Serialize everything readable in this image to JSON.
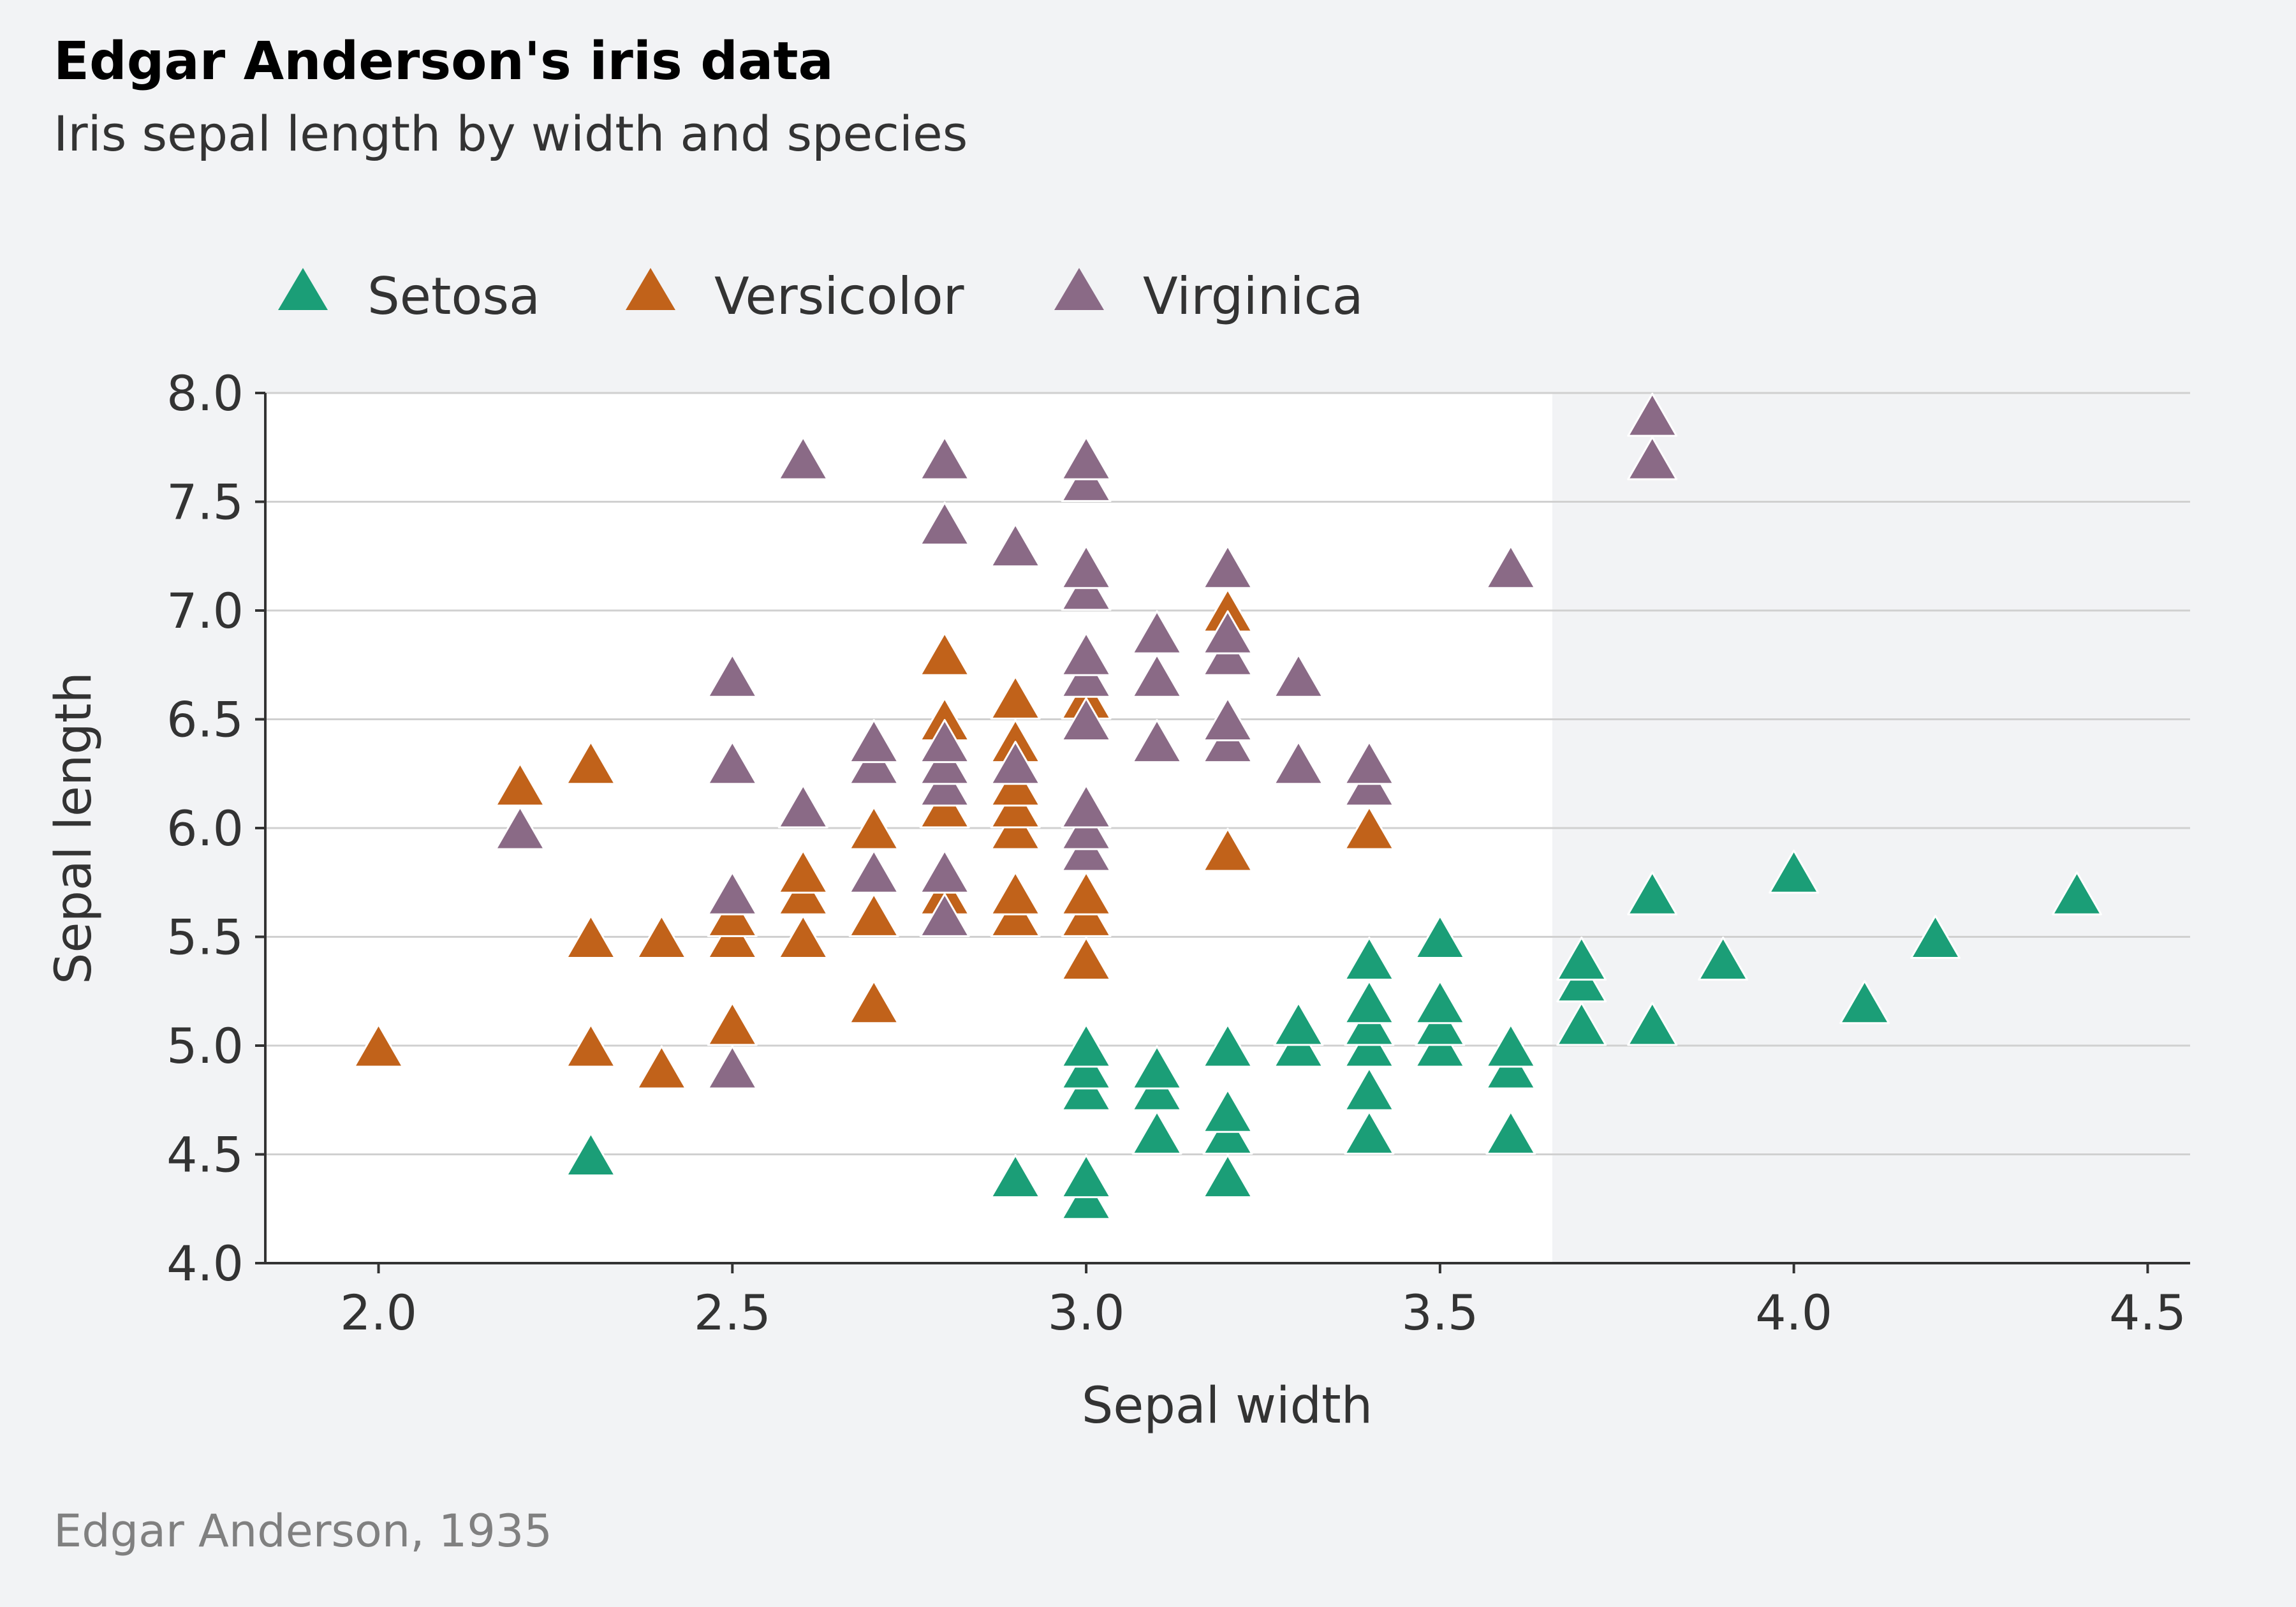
{
  "title": "Edgar Anderson's iris data",
  "subtitle": "Iris sepal length by width and species",
  "caption": "Edgar Anderson, 1935",
  "colors": {
    "background": "#f2f3f5",
    "plot_background": "#ffffff",
    "grid": "#d0d0d0",
    "axis": "#333333",
    "setosa": "#1b9e77",
    "versicolor": "#c1621a",
    "virginica": "#8a6a86"
  },
  "chart_data": {
    "type": "scatter",
    "marker": "triangle",
    "xlabel": "Sepal width",
    "ylabel": "Sepal length",
    "xlim": [
      1.84,
      4.56
    ],
    "ylim": [
      4.0,
      8.0
    ],
    "xticks": [
      2.0,
      2.5,
      3.0,
      3.5,
      4.0,
      4.5
    ],
    "xtick_labels": [
      "2.0",
      "2.5",
      "3.0",
      "3.5",
      "4.0",
      "4.5"
    ],
    "yticks": [
      4.0,
      4.5,
      5.0,
      5.5,
      6.0,
      6.5,
      7.0,
      7.5,
      8.0
    ],
    "ytick_labels": [
      "4.0",
      "4.5",
      "5.0",
      "5.5",
      "6.0",
      "6.5",
      "7.0",
      "7.5",
      "8.0"
    ],
    "grid": "horizontal",
    "legend_position": "top-left",
    "series": [
      {
        "name": "Setosa",
        "color": "#1b9e77",
        "points": [
          [
            2.3,
            4.5
          ],
          [
            2.9,
            4.4
          ],
          [
            3.0,
            4.3
          ],
          [
            3.0,
            4.4
          ],
          [
            3.0,
            4.8
          ],
          [
            3.0,
            4.9
          ],
          [
            3.0,
            5.0
          ],
          [
            3.1,
            4.6
          ],
          [
            3.1,
            4.8
          ],
          [
            3.1,
            4.9
          ],
          [
            3.2,
            4.4
          ],
          [
            3.2,
            4.6
          ],
          [
            3.2,
            4.7
          ],
          [
            3.2,
            5.0
          ],
          [
            3.3,
            5.0
          ],
          [
            3.3,
            5.1
          ],
          [
            3.4,
            4.6
          ],
          [
            3.4,
            4.8
          ],
          [
            3.4,
            5.0
          ],
          [
            3.4,
            5.1
          ],
          [
            3.4,
            5.2
          ],
          [
            3.4,
            5.4
          ],
          [
            3.5,
            5.0
          ],
          [
            3.5,
            5.1
          ],
          [
            3.5,
            5.2
          ],
          [
            3.5,
            5.5
          ],
          [
            3.6,
            4.6
          ],
          [
            3.6,
            4.9
          ],
          [
            3.6,
            5.0
          ],
          [
            3.7,
            5.1
          ],
          [
            3.7,
            5.3
          ],
          [
            3.7,
            5.4
          ],
          [
            3.8,
            5.1
          ],
          [
            3.8,
            5.7
          ],
          [
            3.9,
            5.4
          ],
          [
            4.0,
            5.8
          ],
          [
            4.1,
            5.2
          ],
          [
            4.2,
            5.5
          ],
          [
            4.4,
            5.7
          ]
        ]
      },
      {
        "name": "Versicolor",
        "color": "#c1621a",
        "points": [
          [
            2.0,
            5.0
          ],
          [
            2.2,
            6.2
          ],
          [
            2.3,
            5.0
          ],
          [
            2.3,
            5.5
          ],
          [
            2.3,
            6.3
          ],
          [
            2.4,
            4.9
          ],
          [
            2.4,
            5.5
          ],
          [
            2.5,
            5.1
          ],
          [
            2.5,
            5.5
          ],
          [
            2.5,
            5.6
          ],
          [
            2.6,
            5.5
          ],
          [
            2.6,
            5.7
          ],
          [
            2.6,
            5.8
          ],
          [
            2.7,
            5.2
          ],
          [
            2.7,
            5.6
          ],
          [
            2.7,
            6.0
          ],
          [
            2.8,
            5.7
          ],
          [
            2.8,
            6.1
          ],
          [
            2.8,
            6.5
          ],
          [
            2.8,
            6.8
          ],
          [
            2.9,
            5.6
          ],
          [
            2.9,
            5.7
          ],
          [
            2.9,
            6.0
          ],
          [
            2.9,
            6.1
          ],
          [
            2.9,
            6.2
          ],
          [
            2.9,
            6.4
          ],
          [
            2.9,
            6.6
          ],
          [
            3.0,
            5.4
          ],
          [
            3.0,
            5.6
          ],
          [
            3.0,
            5.7
          ],
          [
            3.0,
            6.6
          ],
          [
            3.2,
            5.9
          ],
          [
            3.2,
            7.0
          ],
          [
            3.4,
            6.0
          ]
        ]
      },
      {
        "name": "Virginica",
        "color": "#8a6a86",
        "points": [
          [
            2.2,
            6.0
          ],
          [
            2.5,
            4.9
          ],
          [
            2.5,
            5.7
          ],
          [
            2.5,
            6.3
          ],
          [
            2.5,
            6.7
          ],
          [
            2.6,
            6.1
          ],
          [
            2.6,
            7.7
          ],
          [
            2.7,
            5.8
          ],
          [
            2.7,
            6.3
          ],
          [
            2.7,
            6.4
          ],
          [
            2.8,
            5.6
          ],
          [
            2.8,
            5.8
          ],
          [
            2.8,
            6.2
          ],
          [
            2.8,
            6.3
          ],
          [
            2.8,
            6.4
          ],
          [
            2.8,
            7.4
          ],
          [
            2.8,
            7.7
          ],
          [
            2.9,
            6.3
          ],
          [
            2.9,
            7.3
          ],
          [
            3.0,
            5.9
          ],
          [
            3.0,
            6.0
          ],
          [
            3.0,
            6.1
          ],
          [
            3.0,
            6.5
          ],
          [
            3.0,
            6.7
          ],
          [
            3.0,
            6.8
          ],
          [
            3.0,
            7.1
          ],
          [
            3.0,
            7.2
          ],
          [
            3.0,
            7.6
          ],
          [
            3.0,
            7.7
          ],
          [
            3.1,
            6.4
          ],
          [
            3.1,
            6.7
          ],
          [
            3.1,
            6.9
          ],
          [
            3.2,
            6.4
          ],
          [
            3.2,
            6.5
          ],
          [
            3.2,
            6.8
          ],
          [
            3.2,
            6.9
          ],
          [
            3.2,
            7.2
          ],
          [
            3.3,
            6.3
          ],
          [
            3.3,
            6.7
          ],
          [
            3.4,
            6.2
          ],
          [
            3.4,
            6.3
          ],
          [
            3.6,
            7.2
          ],
          [
            3.8,
            7.7
          ],
          [
            3.8,
            7.9
          ]
        ]
      }
    ]
  }
}
